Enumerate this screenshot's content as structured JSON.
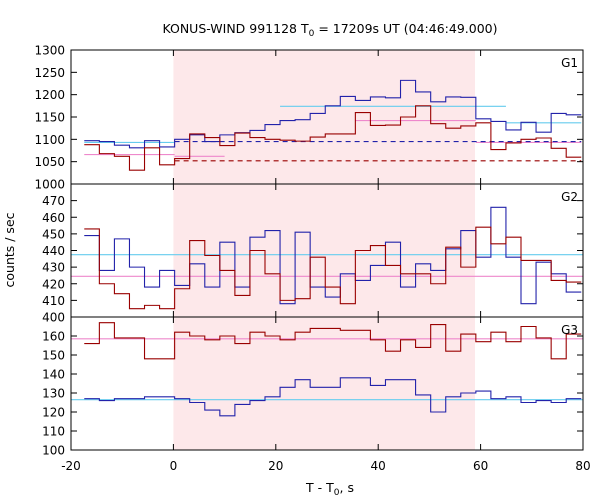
{
  "chart_data": {
    "type": "line",
    "title_main": "KONUS-WIND 991128 T",
    "title_sub": "0",
    "title_rest": " = 17209s UT (04:46:49.000)",
    "xlabel_main": "T - T",
    "xlabel_sub": "0",
    "xlabel_rest": ", s",
    "ylabel": "counts / sec",
    "xlim": [
      -20,
      80
    ],
    "xticks": [
      "-20",
      "0",
      "20",
      "40",
      "60",
      "80"
    ],
    "grid": false,
    "legend": "none",
    "colors": {
      "blue": "#2222aa",
      "red": "#990000",
      "cyan": "#66ccee",
      "pink": "#ee88cc",
      "shade": "#fde8ea"
    },
    "shaded_interval": [
      0,
      58.9
    ],
    "bin_edges": [
      -17.41,
      -14.46,
      -11.52,
      -8.58,
      -5.64,
      -2.7,
      0.24,
      3.18,
      6.13,
      9.07,
      12.01,
      14.95,
      17.89,
      20.83,
      23.77,
      26.71,
      29.66,
      32.6,
      35.54,
      38.48,
      41.42,
      44.36,
      47.3,
      50.25,
      53.19,
      56.13,
      59.07,
      62.01,
      64.95,
      67.89,
      70.83,
      73.78,
      76.72,
      79.66
    ],
    "panels": [
      {
        "label": "G1",
        "ylim": [
          1000,
          1300
        ],
        "yticks": [
          1000,
          1050,
          1100,
          1150,
          1200,
          1250,
          1300
        ],
        "series": [
          {
            "color": "blue",
            "values": [
              1097,
              1095,
              1087,
              1081,
              1097,
              1083,
              1100,
              1110,
              1095,
              1110,
              1115,
              1120,
              1133,
              1142,
              1144,
              1158,
              1175,
              1196,
              1187,
              1195,
              1193,
              1232,
              1206,
              1184,
              1195,
              1194,
              1146,
              1140,
              1121,
              1138,
              1116,
              1158,
              1155
            ]
          },
          {
            "color": "red",
            "values": [
              1088,
              1068,
              1062,
              1031,
              1081,
              1043,
              1057,
              1112,
              1104,
              1086,
              1114,
              1104,
              1100,
              1098,
              1096,
              1105,
              1112,
              1112,
              1160,
              1131,
              1132,
              1150,
              1175,
              1135,
              1125,
              1130,
              1137,
              1077,
              1092,
              1100,
              1103,
              1080,
              1060
            ]
          }
        ],
        "hlines": [
          {
            "color": "cyan",
            "style": "solid",
            "y": 1093,
            "x0": -17.41,
            "x1": 0.24
          },
          {
            "color": "cyan",
            "style": "solid",
            "y": 1174,
            "x0": 20.83,
            "x1": 64.95
          },
          {
            "color": "cyan",
            "style": "solid",
            "y": 1137,
            "x0": 64.95,
            "x1": 79.66
          },
          {
            "color": "pink",
            "style": "solid",
            "y": 1066,
            "x0": -17.41,
            "x1": 0.24
          },
          {
            "color": "pink",
            "style": "solid",
            "y": 1142,
            "x0": 35.54,
            "x1": 59.07
          },
          {
            "color": "pink",
            "style": "solid",
            "y": 1093,
            "x0": 59.07,
            "x1": 79.66
          },
          {
            "color": "pink",
            "style": "solid",
            "y": 1062,
            "x0": 0.24,
            "x1": 10
          },
          {
            "color": "blue",
            "style": "dashed",
            "y": 1095,
            "x0": 0.24,
            "x1": 79.66
          },
          {
            "color": "red",
            "style": "dashed",
            "y": 1052,
            "x0": 0.24,
            "x1": 79.66
          }
        ]
      },
      {
        "label": "G2",
        "ylim": [
          400,
          480
        ],
        "yticks": [
          400,
          410,
          420,
          430,
          440,
          450,
          460,
          470
        ],
        "series": [
          {
            "color": "blue",
            "values": [
              449,
              428,
              447,
              430,
              418,
              428,
              419,
              432,
              418,
              445,
              418,
              448,
              452,
              408,
              451,
              418,
              412,
              426,
              422,
              431,
              445,
              418,
              432,
              428,
              441,
              452,
              436,
              466,
              436,
              408,
              433,
              426,
              415
            ]
          },
          {
            "color": "red",
            "values": [
              453,
              420,
              414,
              405,
              407,
              405,
              417,
              446,
              437,
              428,
              413,
              440,
              426,
              410,
              411,
              436,
              418,
              408,
              440,
              443,
              431,
              426,
              426,
              420,
              442,
              430,
              454,
              444,
              448,
              434,
              434,
              422,
              421
            ]
          }
        ],
        "hlines": [
          {
            "color": "cyan",
            "style": "solid",
            "y": 437.5,
            "x0": -20,
            "x1": 80
          },
          {
            "color": "pink",
            "style": "solid",
            "y": 424.5,
            "x0": -20,
            "x1": 80
          }
        ]
      },
      {
        "label": "G3",
        "ylim": [
          100,
          170
        ],
        "yticks": [
          100,
          110,
          120,
          130,
          140,
          150,
          160
        ],
        "series": [
          {
            "color": "blue",
            "values": [
              127,
              126,
              127,
              127,
              128,
              128,
              127,
              125,
              121,
              118,
              124,
              126,
              128,
              133,
              137,
              133,
              133,
              138,
              138,
              134,
              137,
              137,
              129,
              120,
              128,
              130,
              131,
              127,
              128,
              125,
              126,
              125,
              127
            ]
          },
          {
            "color": "red",
            "values": [
              156,
              167,
              159,
              159,
              148,
              148,
              162,
              160,
              158,
              160,
              156,
              162,
              160,
              158,
              162,
              164,
              164,
              163,
              163,
              158,
              152,
              158,
              154,
              166,
              152,
              161,
              157,
              162,
              157,
              165,
              159,
              148,
              161
            ]
          }
        ],
        "hlines": [
          {
            "color": "cyan",
            "style": "solid",
            "y": 126.5,
            "x0": -20,
            "x1": 80
          },
          {
            "color": "pink",
            "style": "solid",
            "y": 158.5,
            "x0": -20,
            "x1": 80
          }
        ]
      }
    ]
  }
}
